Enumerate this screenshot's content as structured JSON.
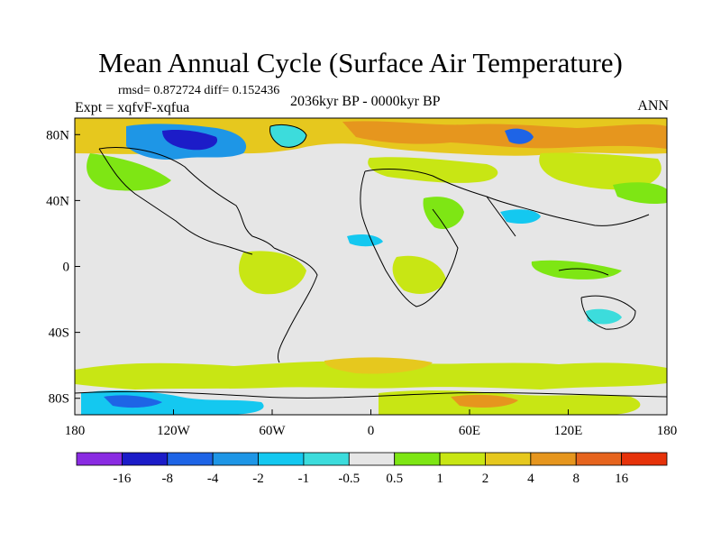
{
  "title": "Mean Annual Cycle (Surface Air Temperature)",
  "stats": "rmsd= 0.872724 diff= 0.152436",
  "experiment": "Expt = xqfvF-xqfua",
  "period": "2036kyr BP - 0000kyr BP",
  "season": "ANN",
  "axes": {
    "lat_ticks": [
      "80N",
      "40N",
      "0",
      "40S",
      "80S"
    ],
    "lat_values": [
      80,
      40,
      0,
      -40,
      -80
    ],
    "lon_ticks": [
      "180",
      "120W",
      "60W",
      "0",
      "60E",
      "120E",
      "180"
    ],
    "lon_values": [
      -180,
      -120,
      -60,
      0,
      60,
      120,
      180
    ]
  },
  "colorbar": {
    "labels": [
      "-16",
      "-8",
      "-4",
      "-2",
      "-1",
      "-0.5",
      "0.5",
      "1",
      "2",
      "4",
      "8",
      "16"
    ],
    "colors": [
      "#8a2be2",
      "#1c1cc8",
      "#1e64e6",
      "#1e96e6",
      "#14c8f0",
      "#3cdcdc",
      "#e6e6e6",
      "#7ee614",
      "#c8e614",
      "#e6c81e",
      "#e6961e",
      "#e6641e",
      "#e6320a"
    ]
  },
  "colors": {
    "background": "#e6e6e6",
    "coast": "#000000"
  }
}
